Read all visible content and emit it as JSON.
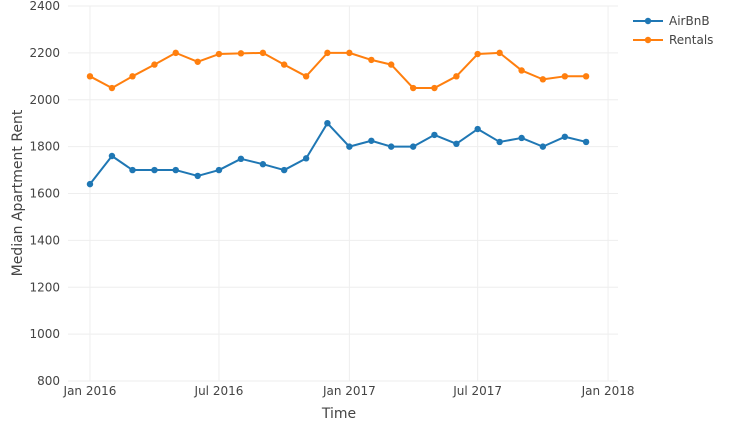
{
  "chart_data": {
    "type": "line",
    "xlabel": "Time",
    "ylabel": "Median Apartment Rent",
    "ylim": [
      800,
      2400
    ],
    "yticks": [
      800,
      1000,
      1200,
      1400,
      1600,
      1800,
      2000,
      2200,
      2400
    ],
    "xlim": [
      "2015-12-01",
      "2018-01-15"
    ],
    "xticks": [
      {
        "date": "2016-01-01",
        "label": "Jan 2016"
      },
      {
        "date": "2016-07-01",
        "label": "Jul 2016"
      },
      {
        "date": "2017-01-01",
        "label": "Jan 2017"
      },
      {
        "date": "2017-07-01",
        "label": "Jul 2017"
      },
      {
        "date": "2018-01-01",
        "label": "Jan 2018"
      }
    ],
    "grid": true,
    "legend_position": "top-right",
    "x": [
      "2016-01-01",
      "2016-02-01",
      "2016-03-01",
      "2016-04-01",
      "2016-05-01",
      "2016-06-01",
      "2016-07-01",
      "2016-08-01",
      "2016-09-01",
      "2016-10-01",
      "2016-11-01",
      "2016-12-01",
      "2017-01-01",
      "2017-02-01",
      "2017-03-01",
      "2017-04-01",
      "2017-05-01",
      "2017-06-01",
      "2017-07-01",
      "2017-08-01",
      "2017-09-01",
      "2017-10-01",
      "2017-11-01",
      "2017-12-01"
    ],
    "series": [
      {
        "name": "AirBnB",
        "color": "#1f77b4",
        "values": [
          1640,
          1760,
          1700,
          1700,
          1700,
          1675,
          1700,
          1748,
          1725,
          1700,
          1750,
          1900,
          1800,
          1825,
          1800,
          1800,
          1850,
          1812,
          1875,
          1820,
          1837,
          1800,
          1842,
          1820
        ]
      },
      {
        "name": "Rentals",
        "color": "#ff7f0e",
        "values": [
          2100,
          2050,
          2100,
          2150,
          2200,
          2162,
          2195,
          2198,
          2200,
          2150,
          2100,
          2200,
          2200,
          2170,
          2150,
          2050,
          2050,
          2100,
          2195,
          2200,
          2125,
          2087,
          2100,
          2100
        ]
      }
    ]
  }
}
